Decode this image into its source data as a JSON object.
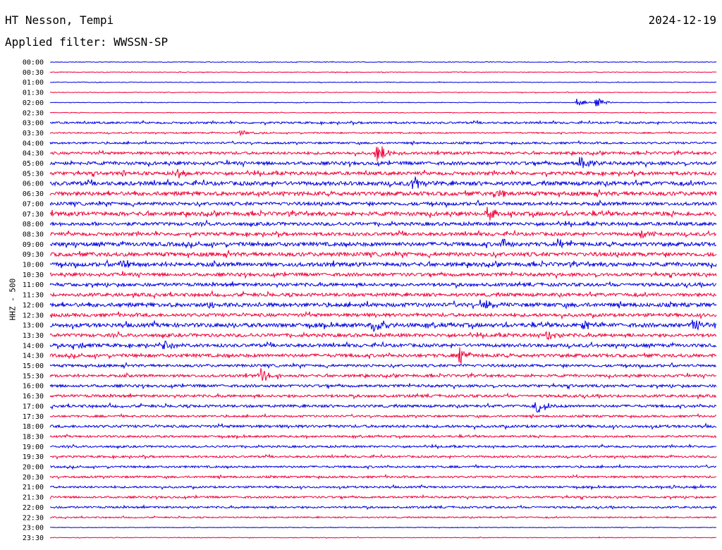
{
  "header": {
    "station": "HT Nesson, Tempi",
    "date": "2024-12-19",
    "filter": "Applied filter: WWSSN-SP"
  },
  "colors": {
    "blue": "#0000e0",
    "red": "#f0003a"
  },
  "chart_data": {
    "type": "line",
    "ylabel": "HHZ - 500",
    "rows": [
      "00:00",
      "00:30",
      "01:00",
      "01:30",
      "02:00",
      "02:30",
      "03:00",
      "03:30",
      "04:00",
      "04:30",
      "05:00",
      "05:30",
      "06:00",
      "06:30",
      "07:00",
      "07:30",
      "08:00",
      "08:30",
      "09:00",
      "09:30",
      "10:00",
      "10:30",
      "11:00",
      "11:30",
      "12:00",
      "12:30",
      "13:00",
      "13:30",
      "14:00",
      "14:30",
      "15:00",
      "15:30",
      "16:00",
      "16:30",
      "17:00",
      "17:30",
      "18:00",
      "18:30",
      "19:00",
      "19:30",
      "20:00",
      "20:30",
      "21:00",
      "21:30",
      "22:00",
      "22:30",
      "23:00",
      "23:30"
    ],
    "noise": [
      1,
      1,
      1,
      1,
      1,
      1,
      3,
      2,
      3,
      4,
      5,
      5,
      6,
      6,
      5,
      6,
      5,
      5,
      6,
      6,
      6,
      5,
      5,
      5,
      6,
      5,
      6,
      5,
      5,
      5,
      4,
      4,
      4,
      4,
      4,
      3,
      4,
      3,
      3,
      3,
      3,
      3,
      3,
      3,
      3,
      2,
      1,
      1
    ],
    "events": [
      {
        "row": 4,
        "t": 0.79,
        "amp": 6
      },
      {
        "row": 4,
        "t": 0.82,
        "amp": 7
      },
      {
        "row": 7,
        "t": 0.285,
        "amp": 5
      },
      {
        "row": 9,
        "t": 0.49,
        "amp": 18
      },
      {
        "row": 10,
        "t": 0.795,
        "amp": 14
      },
      {
        "row": 11,
        "t": 0.19,
        "amp": 8
      },
      {
        "row": 11,
        "t": 0.11,
        "amp": 5
      },
      {
        "row": 12,
        "t": 0.545,
        "amp": 14
      },
      {
        "row": 13,
        "t": 0.665,
        "amp": 8
      },
      {
        "row": 15,
        "t": 0.655,
        "amp": 12
      },
      {
        "row": 17,
        "t": 0.885,
        "amp": 8
      },
      {
        "row": 18,
        "t": 0.68,
        "amp": 8
      },
      {
        "row": 18,
        "t": 0.76,
        "amp": 7
      },
      {
        "row": 20,
        "t": 0.105,
        "amp": 9
      },
      {
        "row": 24,
        "t": 0.645,
        "amp": 12
      },
      {
        "row": 24,
        "t": 0.24,
        "amp": 6
      },
      {
        "row": 26,
        "t": 0.485,
        "amp": 14
      },
      {
        "row": 26,
        "t": 0.8,
        "amp": 9
      },
      {
        "row": 26,
        "t": 0.965,
        "amp": 11
      },
      {
        "row": 27,
        "t": 0.745,
        "amp": 10
      },
      {
        "row": 28,
        "t": 0.035,
        "amp": 8
      },
      {
        "row": 28,
        "t": 0.17,
        "amp": 9
      },
      {
        "row": 29,
        "t": 0.615,
        "amp": 12
      },
      {
        "row": 31,
        "t": 0.315,
        "amp": 12
      },
      {
        "row": 34,
        "t": 0.73,
        "amp": 14
      },
      {
        "row": 42,
        "t": 0.93,
        "amp": 4
      }
    ]
  }
}
